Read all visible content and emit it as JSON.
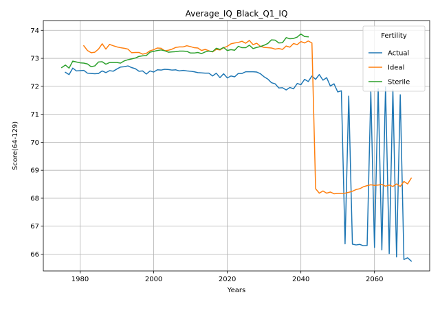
{
  "chart_data": {
    "type": "line",
    "title": "Average_IQ_Black_Q1_IQ",
    "xlabel": "Years",
    "ylabel": "Score(64-129)",
    "xlim": [
      1970,
      2075
    ],
    "ylim": [
      65.4,
      74.35
    ],
    "xticks": [
      1980,
      2000,
      2020,
      2040,
      2060
    ],
    "yticks": [
      66,
      67,
      68,
      69,
      70,
      71,
      72,
      73,
      74
    ],
    "grid": true,
    "legend": {
      "title": "Fertility",
      "placement": "top-right"
    },
    "series": [
      {
        "name": "Actual",
        "color": "#1f77b4",
        "x": [
          1976,
          1977,
          1978,
          1979,
          1980,
          1981,
          1982,
          1983,
          1984,
          1985,
          1986,
          1987,
          1988,
          1989,
          1990,
          1991,
          1992,
          1993,
          1994,
          1995,
          1996,
          1997,
          1998,
          1999,
          2000,
          2001,
          2002,
          2003,
          2004,
          2005,
          2006,
          2007,
          2008,
          2009,
          2010,
          2011,
          2012,
          2013,
          2014,
          2015,
          2016,
          2017,
          2018,
          2019,
          2020,
          2021,
          2022,
          2023,
          2024,
          2025,
          2026,
          2027,
          2028,
          2029,
          2030,
          2031,
          2032,
          2033,
          2034,
          2035,
          2036,
          2037,
          2038,
          2039,
          2040,
          2041,
          2042,
          2043,
          2044,
          2045,
          2046,
          2047,
          2048,
          2049,
          2050,
          2051,
          2052,
          2053,
          2054,
          2055,
          2056,
          2057,
          2058,
          2059,
          2060,
          2061,
          2062,
          2063,
          2064,
          2065,
          2066,
          2067,
          2068,
          2069,
          2070
        ],
        "values": [
          72.5,
          72.42,
          72.65,
          72.55,
          72.56,
          72.57,
          72.47,
          72.46,
          72.45,
          72.46,
          72.55,
          72.49,
          72.56,
          72.54,
          72.62,
          72.69,
          72.7,
          72.73,
          72.67,
          72.63,
          72.54,
          72.55,
          72.44,
          72.55,
          72.51,
          72.59,
          72.58,
          72.61,
          72.6,
          72.58,
          72.59,
          72.55,
          72.57,
          72.55,
          72.54,
          72.52,
          72.49,
          72.48,
          72.47,
          72.47,
          72.37,
          72.47,
          72.31,
          72.45,
          72.3,
          72.37,
          72.34,
          72.46,
          72.46,
          72.52,
          72.52,
          72.52,
          72.51,
          72.45,
          72.34,
          72.26,
          72.13,
          72.09,
          71.94,
          71.95,
          71.87,
          71.96,
          71.91,
          72.1,
          72.06,
          72.25,
          72.17,
          72.37,
          72.25,
          72.42,
          72.22,
          72.31,
          72.01,
          72.09,
          71.8,
          71.84,
          66.37,
          71.65,
          66.36,
          66.33,
          66.35,
          66.3,
          66.31,
          71.8,
          66.24,
          71.92,
          66.15,
          71.98,
          66.02,
          71.87,
          65.9,
          71.7,
          65.81,
          65.87,
          65.75
        ]
      },
      {
        "name": "Ideal",
        "color": "#ff7f0e",
        "x": [
          1981,
          1982,
          1983,
          1984,
          1985,
          1986,
          1987,
          1988,
          1989,
          1990,
          1991,
          1992,
          1993,
          1994,
          1995,
          1996,
          1997,
          1998,
          1999,
          2000,
          2001,
          2002,
          2003,
          2004,
          2005,
          2006,
          2007,
          2008,
          2009,
          2010,
          2011,
          2012,
          2013,
          2014,
          2015,
          2016,
          2017,
          2018,
          2019,
          2020,
          2021,
          2022,
          2023,
          2024,
          2025,
          2026,
          2027,
          2028,
          2029,
          2030,
          2031,
          2032,
          2033,
          2034,
          2035,
          2036,
          2037,
          2038,
          2039,
          2040,
          2041,
          2042,
          2043,
          2044,
          2045,
          2046,
          2047,
          2048,
          2049,
          2050,
          2051,
          2052,
          2053,
          2054,
          2055,
          2056,
          2057,
          2058,
          2059,
          2060,
          2061,
          2062,
          2063,
          2064,
          2065,
          2066,
          2067,
          2068,
          2069,
          2070
        ],
        "values": [
          73.45,
          73.28,
          73.2,
          73.22,
          73.33,
          73.52,
          73.33,
          73.5,
          73.45,
          73.41,
          73.38,
          73.36,
          73.33,
          73.2,
          73.21,
          73.21,
          73.15,
          73.18,
          73.27,
          73.31,
          73.37,
          73.36,
          73.27,
          73.29,
          73.33,
          73.39,
          73.41,
          73.41,
          73.45,
          73.42,
          73.38,
          73.37,
          73.28,
          73.32,
          73.27,
          73.23,
          73.32,
          73.3,
          73.38,
          73.43,
          73.52,
          73.55,
          73.57,
          73.61,
          73.54,
          73.64,
          73.49,
          73.54,
          73.43,
          73.39,
          73.38,
          73.37,
          73.33,
          73.35,
          73.32,
          73.44,
          73.4,
          73.53,
          73.49,
          73.6,
          73.55,
          73.62,
          73.55,
          68.34,
          68.18,
          68.26,
          68.18,
          68.22,
          68.16,
          68.17,
          68.17,
          68.18,
          68.21,
          68.25,
          68.31,
          68.34,
          68.41,
          68.45,
          68.48,
          68.46,
          68.47,
          68.49,
          68.43,
          68.47,
          68.42,
          68.51,
          68.42,
          68.6,
          68.51,
          68.72
        ]
      },
      {
        "name": "Sterile",
        "color": "#2ca02c",
        "x": [
          1975,
          1976,
          1977,
          1978,
          1979,
          1980,
          1981,
          1982,
          1983,
          1984,
          1985,
          1986,
          1987,
          1988,
          1989,
          1990,
          1991,
          1992,
          1993,
          1994,
          1995,
          1996,
          1997,
          1998,
          1999,
          2000,
          2001,
          2002,
          2003,
          2004,
          2005,
          2006,
          2007,
          2008,
          2009,
          2010,
          2011,
          2012,
          2013,
          2014,
          2015,
          2016,
          2017,
          2018,
          2019,
          2020,
          2021,
          2022,
          2023,
          2024,
          2025,
          2026,
          2027,
          2028,
          2029,
          2030,
          2031,
          2032,
          2033,
          2034,
          2035,
          2036,
          2037,
          2038,
          2039,
          2040,
          2041,
          2042
        ],
        "values": [
          72.67,
          72.76,
          72.65,
          72.9,
          72.87,
          72.84,
          72.83,
          72.8,
          72.7,
          72.73,
          72.87,
          72.88,
          72.79,
          72.85,
          72.85,
          72.85,
          72.83,
          72.91,
          72.95,
          72.98,
          73.01,
          73.07,
          73.09,
          73.1,
          73.22,
          73.25,
          73.28,
          73.3,
          73.27,
          73.22,
          73.23,
          73.24,
          73.26,
          73.26,
          73.25,
          73.19,
          73.19,
          73.21,
          73.17,
          73.23,
          73.26,
          73.24,
          73.36,
          73.32,
          73.39,
          73.28,
          73.31,
          73.29,
          73.43,
          73.38,
          73.38,
          73.47,
          73.35,
          73.39,
          73.42,
          73.47,
          73.53,
          73.66,
          73.65,
          73.55,
          73.56,
          73.74,
          73.7,
          73.71,
          73.76,
          73.87,
          73.78,
          73.77
        ]
      }
    ]
  }
}
